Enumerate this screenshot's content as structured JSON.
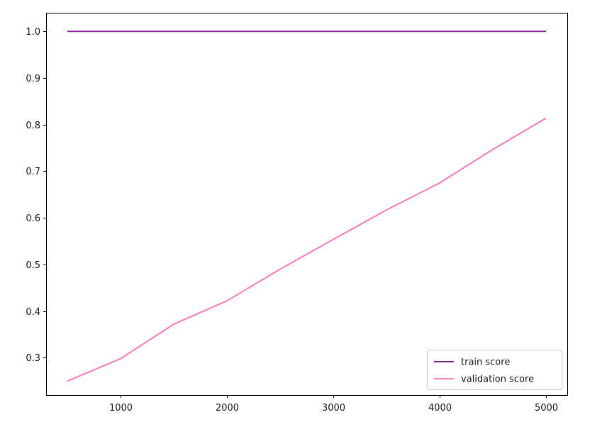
{
  "chart_data": {
    "type": "line",
    "title": "",
    "xlabel": "",
    "ylabel": "",
    "x": [
      500,
      1000,
      1500,
      2000,
      2500,
      3000,
      3500,
      4000,
      4500,
      5000
    ],
    "xlim": [
      300,
      5200
    ],
    "ylim": [
      0.22,
      1.04
    ],
    "xticks": [
      1000,
      2000,
      3000,
      4000,
      5000
    ],
    "xtick_labels": [
      "1000",
      "2000",
      "3000",
      "4000",
      "5000"
    ],
    "yticks": [
      0.3,
      0.4,
      0.5,
      0.6,
      0.7,
      0.8,
      0.9,
      1.0
    ],
    "ytick_labels": [
      "0.3",
      "0.4",
      "0.5",
      "0.6",
      "0.7",
      "0.8",
      "0.9",
      "1.0"
    ],
    "grid": false,
    "legend_position": "bottom-right",
    "series": [
      {
        "name": "train score",
        "color": "#882d91",
        "values": [
          1.0,
          1.0,
          1.0,
          1.0,
          1.0,
          1.0,
          1.0,
          1.0,
          1.0,
          1.0
        ]
      },
      {
        "name": "validation score",
        "color": "#ff7cc0",
        "values": [
          0.25,
          0.298,
          0.372,
          0.422,
          0.49,
          0.554,
          0.617,
          0.675,
          0.747,
          0.814
        ]
      }
    ]
  }
}
